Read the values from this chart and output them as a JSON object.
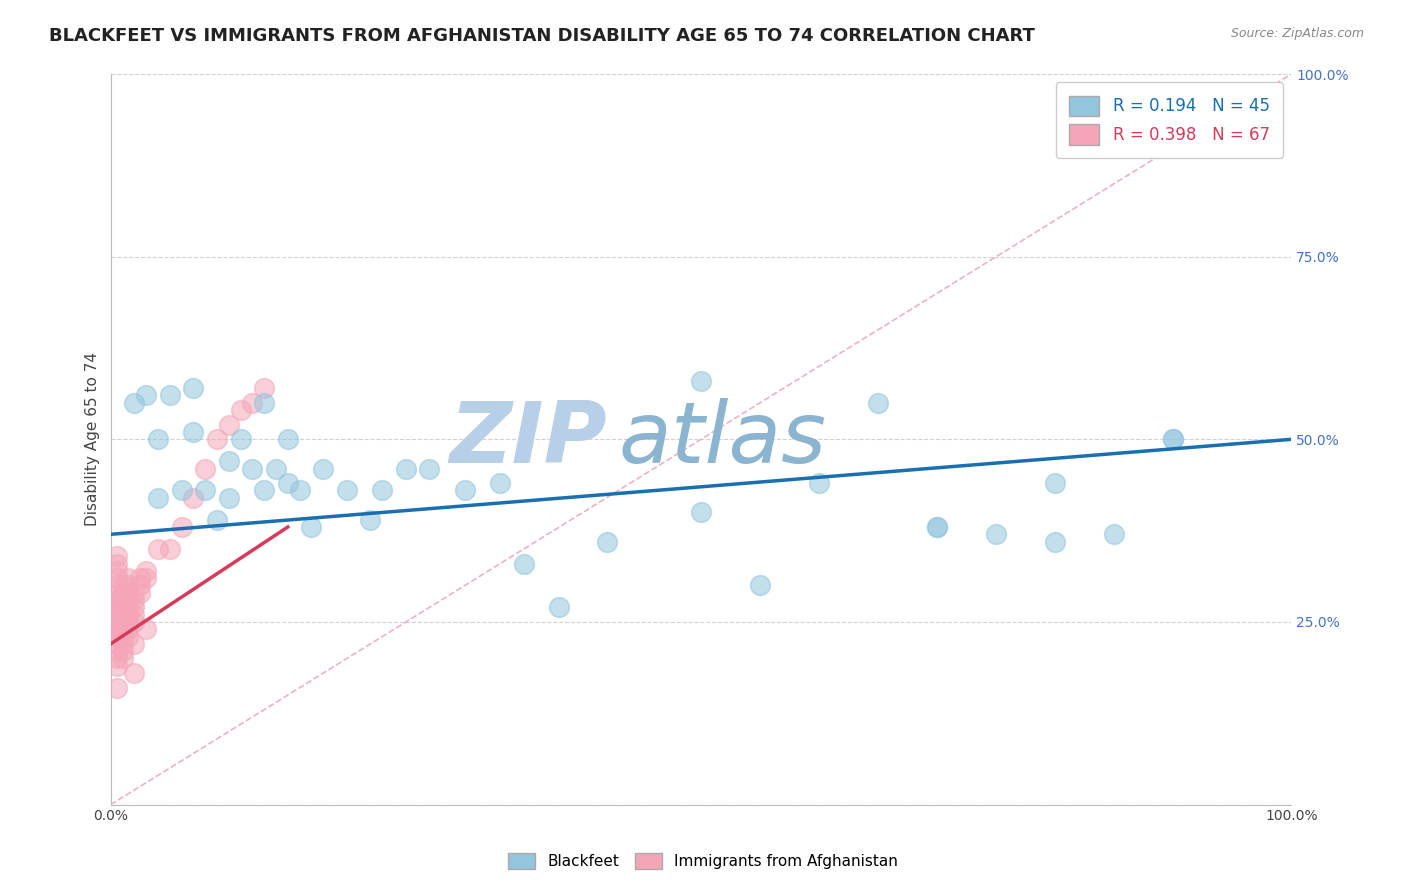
{
  "title": "BLACKFEET VS IMMIGRANTS FROM AFGHANISTAN DISABILITY AGE 65 TO 74 CORRELATION CHART",
  "source_text": "Source: ZipAtlas.com",
  "ylabel": "Disability Age 65 to 74",
  "xlim": [
    0,
    1
  ],
  "ylim": [
    0,
    1
  ],
  "xticks": [
    0.0,
    0.1,
    0.2,
    0.3,
    0.4,
    0.5,
    0.6,
    0.7,
    0.8,
    0.9,
    1.0
  ],
  "yticks": [
    0.0,
    0.25,
    0.5,
    0.75,
    1.0
  ],
  "xticklabels_left": "0.0%",
  "xticklabels_right": "100.0%",
  "yticklabels": [
    "",
    "25.0%",
    "50.0%",
    "75.0%",
    "100.0%"
  ],
  "legend_r1": "R = 0.194",
  "legend_n1": "N = 45",
  "legend_r2": "R = 0.398",
  "legend_n2": "N = 67",
  "blue_color": "#92c5de",
  "pink_color": "#f4a6b8",
  "blue_line_color": "#1a6faf",
  "pink_line_color": "#d63b5a",
  "diag_color": "#e8a0b0",
  "watermark_color": "#ccdce8",
  "background_color": "#ffffff",
  "grid_color": "#cccccc",
  "blackfeet_x": [
    0.02,
    0.03,
    0.04,
    0.04,
    0.05,
    0.06,
    0.07,
    0.07,
    0.08,
    0.09,
    0.1,
    0.1,
    0.11,
    0.12,
    0.13,
    0.13,
    0.14,
    0.15,
    0.15,
    0.16,
    0.17,
    0.18,
    0.2,
    0.22,
    0.23,
    0.25,
    0.27,
    0.3,
    0.33,
    0.35,
    0.38,
    0.42,
    0.5,
    0.55,
    0.65,
    0.7,
    0.75,
    0.8,
    0.85,
    0.9,
    0.5,
    0.6,
    0.7,
    0.8,
    0.9
  ],
  "blackfeet_y": [
    0.55,
    0.56,
    0.42,
    0.5,
    0.56,
    0.43,
    0.51,
    0.57,
    0.43,
    0.39,
    0.42,
    0.47,
    0.5,
    0.46,
    0.55,
    0.43,
    0.46,
    0.5,
    0.44,
    0.43,
    0.38,
    0.46,
    0.43,
    0.39,
    0.43,
    0.46,
    0.46,
    0.43,
    0.44,
    0.33,
    0.27,
    0.36,
    0.4,
    0.3,
    0.55,
    0.38,
    0.37,
    0.44,
    0.37,
    0.5,
    0.58,
    0.44,
    0.38,
    0.36,
    0.5
  ],
  "afghanistan_x": [
    0.005,
    0.005,
    0.005,
    0.005,
    0.005,
    0.005,
    0.005,
    0.005,
    0.005,
    0.005,
    0.005,
    0.005,
    0.005,
    0.005,
    0.005,
    0.005,
    0.005,
    0.005,
    0.005,
    0.005,
    0.01,
    0.01,
    0.01,
    0.01,
    0.01,
    0.01,
    0.01,
    0.01,
    0.01,
    0.01,
    0.015,
    0.015,
    0.015,
    0.015,
    0.015,
    0.015,
    0.015,
    0.015,
    0.015,
    0.015,
    0.02,
    0.02,
    0.02,
    0.02,
    0.02,
    0.025,
    0.025,
    0.025,
    0.03,
    0.03,
    0.04,
    0.05,
    0.06,
    0.07,
    0.08,
    0.09,
    0.1,
    0.11,
    0.12,
    0.13,
    0.01,
    0.02,
    0.03,
    0.005,
    0.01,
    0.02,
    0.005
  ],
  "afghanistan_y": [
    0.25,
    0.26,
    0.27,
    0.28,
    0.29,
    0.22,
    0.23,
    0.24,
    0.2,
    0.21,
    0.3,
    0.31,
    0.32,
    0.33,
    0.34,
    0.26,
    0.27,
    0.28,
    0.24,
    0.25,
    0.27,
    0.28,
    0.29,
    0.3,
    0.22,
    0.23,
    0.24,
    0.25,
    0.26,
    0.27,
    0.26,
    0.27,
    0.28,
    0.29,
    0.3,
    0.31,
    0.23,
    0.24,
    0.25,
    0.26,
    0.26,
    0.27,
    0.28,
    0.25,
    0.29,
    0.29,
    0.3,
    0.31,
    0.31,
    0.32,
    0.35,
    0.35,
    0.38,
    0.42,
    0.46,
    0.5,
    0.52,
    0.54,
    0.55,
    0.57,
    0.2,
    0.22,
    0.24,
    0.19,
    0.21,
    0.18,
    0.16
  ],
  "blue_line_start_x": 0.0,
  "blue_line_start_y": 0.37,
  "blue_line_end_x": 1.0,
  "blue_line_end_y": 0.5,
  "pink_line_start_x": 0.0,
  "pink_line_start_y": 0.22,
  "pink_line_end_x": 0.15,
  "pink_line_end_y": 0.38,
  "title_fontsize": 13,
  "axis_label_fontsize": 11,
  "tick_fontsize": 10,
  "legend_fontsize": 12
}
